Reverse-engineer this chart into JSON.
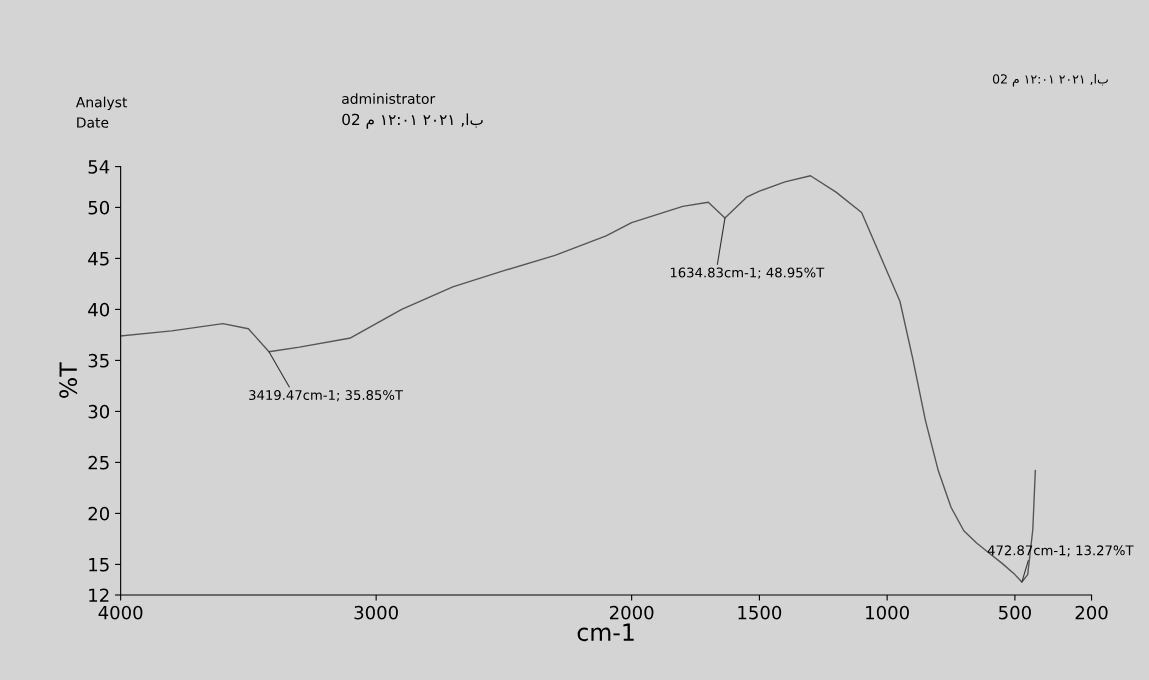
{
  "chart_data": {
    "type": "line",
    "xlabel": "cm-1",
    "ylabel": "%T",
    "xlim": [
      4000,
      200
    ],
    "xticks": [
      4000,
      3000,
      2000,
      1500,
      1000,
      500,
      200
    ],
    "ylim": [
      12,
      54
    ],
    "yticks": [
      12,
      15,
      20,
      25,
      30,
      35,
      40,
      45,
      50,
      54
    ],
    "grid": false,
    "legend": false,
    "series": [
      {
        "color": "#555555",
        "x": [
          4000,
          3800,
          3600,
          3500,
          3419.47,
          3300,
          3100,
          2900,
          2700,
          2500,
          2300,
          2100,
          2000,
          1800,
          1700,
          1634.83,
          1550,
          1500,
          1400,
          1300,
          1200,
          1100,
          1000,
          950,
          900,
          850,
          800,
          750,
          700,
          650,
          600,
          550,
          500,
          472.87,
          450,
          430,
          420
        ],
        "values": [
          37.4,
          37.9,
          38.6,
          38.1,
          35.85,
          36.3,
          37.2,
          40.0,
          42.2,
          43.8,
          45.3,
          47.2,
          48.5,
          50.1,
          50.5,
          48.95,
          51.0,
          51.6,
          52.5,
          53.1,
          51.5,
          49.5,
          43.7,
          40.8,
          35.2,
          29.1,
          24.2,
          20.6,
          18.3,
          17.1,
          16.1,
          15.1,
          14.0,
          13.27,
          14.0,
          18.4,
          24.2
        ]
      }
    ],
    "annotations": [
      {
        "text": "3419.47cm-1; 35.85%T",
        "x": 3419.47,
        "y": 35.85
      },
      {
        "text": "1634.83cm-1; 48.95%T",
        "x": 1634.83,
        "y": 48.95
      },
      {
        "text": "472.87cm-1; 13.27%T",
        "x": 472.87,
        "y": 13.27
      },
      "Analyst",
      "Date",
      "administrator",
      "02 م ١٢:٠١ ٢٠٢١ ,اب",
      "02 م ١٢:٠١ ٢٠٢١ ,اب"
    ]
  }
}
